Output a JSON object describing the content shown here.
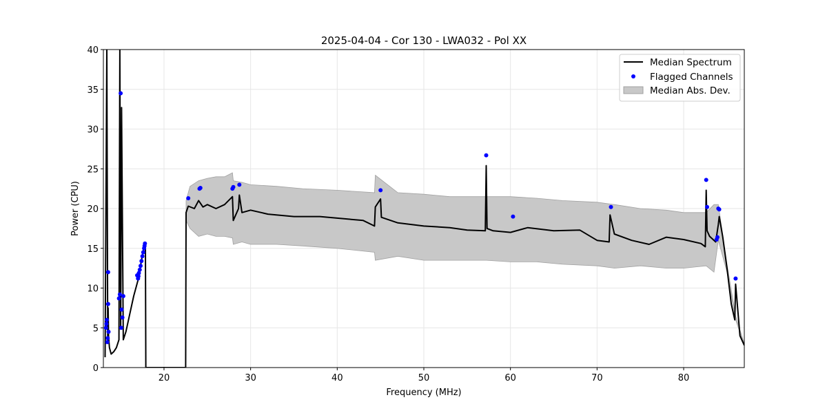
{
  "chart_data": {
    "type": "line",
    "title": "2025-04-04 - Cor 130 - LWA032 - Pol XX",
    "xlabel": "Frequency (MHz)",
    "ylabel": "Power (CPU)",
    "xlim": [
      13,
      87
    ],
    "ylim": [
      0,
      40
    ],
    "xticks": [
      20,
      30,
      40,
      50,
      60,
      70,
      80
    ],
    "yticks": [
      0,
      5,
      10,
      15,
      20,
      25,
      30,
      35,
      40
    ],
    "grid": true,
    "legend_position": "top-right",
    "colors": {
      "median": "#000000",
      "flagged": "#0000ff",
      "mad_fill": "#c8c8c8",
      "mad_edge": "#a0a0a0"
    },
    "legend": [
      "Median Spectrum",
      "Flagged Channels",
      "Median Abs. Dev."
    ],
    "median_spectrum": {
      "name": "Median Spectrum",
      "x": [
        13.2,
        13.4,
        13.5,
        13.55,
        13.6,
        13.7,
        13.9,
        14.2,
        14.5,
        14.8,
        14.9,
        15.0,
        15.1,
        15.3,
        15.6,
        16.0,
        16.5,
        17.0,
        17.4,
        17.7,
        17.85,
        17.9,
        22.5,
        22.55,
        22.8,
        23.5,
        24.0,
        24.5,
        25.0,
        26.0,
        27.0,
        27.9,
        28.0,
        28.6,
        28.7,
        29.0,
        30.0,
        32.0,
        35.0,
        38.0,
        40.0,
        43.0,
        44.3,
        44.4,
        45.0,
        45.1,
        47.0,
        50.0,
        53.0,
        55.0,
        57.1,
        57.2,
        57.3,
        58.0,
        60.0,
        62.0,
        65.0,
        68.0,
        70.0,
        71.4,
        71.5,
        72.0,
        74.0,
        76.0,
        78.0,
        80.0,
        82.0,
        82.5,
        82.6,
        82.7,
        83.0,
        83.7,
        84.0,
        84.1,
        84.5,
        85.0,
        85.5,
        85.9,
        86.0,
        86.5,
        87.0
      ],
      "y": [
        1.3,
        40,
        3.5,
        7.5,
        4.0,
        2.5,
        1.7,
        2.0,
        2.5,
        3.5,
        40,
        5.0,
        32.7,
        3.5,
        4.5,
        6.5,
        9.0,
        11.0,
        13.5,
        15.3,
        15.5,
        0.0,
        0.0,
        19.5,
        20.3,
        20.0,
        21.0,
        20.2,
        20.5,
        20.0,
        20.5,
        21.5,
        18.5,
        20.0,
        21.7,
        19.5,
        19.8,
        19.3,
        19.0,
        19.0,
        18.8,
        18.5,
        17.8,
        20.2,
        21.2,
        18.9,
        18.2,
        17.8,
        17.6,
        17.3,
        17.2,
        25.4,
        17.5,
        17.2,
        17.0,
        17.6,
        17.2,
        17.3,
        16.0,
        15.8,
        19.2,
        16.8,
        16.0,
        15.5,
        16.4,
        16.1,
        15.6,
        15.2,
        22.3,
        17.2,
        16.5,
        15.8,
        18.0,
        19.0,
        16.5,
        12.5,
        8.0,
        6.0,
        10.5,
        4.0,
        2.8
      ]
    },
    "mad_band": {
      "name": "Median Abs. Dev.",
      "x": [
        22.55,
        23.0,
        24.0,
        25.0,
        26.0,
        27.0,
        27.9,
        28.0,
        29.0,
        30.0,
        33.0,
        36.0,
        40.0,
        44.3,
        44.4,
        47.0,
        50.0,
        53.0,
        57.2,
        60.0,
        63.0,
        66.0,
        70.0,
        72.0,
        75.0,
        78.0,
        80.0,
        82.6,
        83.5,
        84.0,
        85.0,
        86.0,
        87.0
      ],
      "upper": [
        21.0,
        22.8,
        23.5,
        23.8,
        24.0,
        24.0,
        24.5,
        23.5,
        23.3,
        23.0,
        22.8,
        22.5,
        22.3,
        22.0,
        24.2,
        22.0,
        21.8,
        21.5,
        21.5,
        21.5,
        21.3,
        21.0,
        20.8,
        20.5,
        20.0,
        19.8,
        19.5,
        19.5,
        20.5,
        20.5,
        13.0,
        6.5,
        3.0
      ],
      "lower": [
        18.5,
        17.5,
        16.5,
        16.8,
        16.5,
        16.5,
        16.3,
        15.5,
        15.8,
        15.5,
        15.5,
        15.3,
        15.0,
        14.5,
        13.5,
        14.0,
        13.5,
        13.5,
        13.5,
        13.3,
        13.3,
        13.0,
        12.8,
        12.5,
        12.8,
        12.5,
        12.5,
        12.8,
        12.0,
        16.0,
        12.0,
        6.0,
        2.8
      ]
    },
    "flagged_channels": {
      "name": "Flagged Channels",
      "x": [
        13.3,
        13.35,
        13.4,
        13.45,
        13.5,
        13.55,
        13.55,
        13.6,
        15.0,
        15.05,
        14.8,
        14.9,
        15.1,
        15.2,
        15.3,
        16.9,
        17.0,
        17.05,
        17.1,
        17.2,
        17.3,
        17.4,
        17.5,
        17.6,
        17.7,
        17.75,
        17.8,
        22.8,
        24.1,
        24.2,
        27.9,
        28.0,
        28.7,
        45.0,
        57.2,
        60.3,
        71.6,
        82.6,
        82.7,
        83.8,
        83.9,
        84.0,
        84.1,
        86.0
      ],
      "y": [
        5.0,
        5.5,
        6.0,
        3.2,
        3.7,
        12.0,
        8.0,
        4.5,
        34.5,
        5.0,
        8.7,
        9.2,
        7.3,
        6.3,
        9.0,
        11.6,
        11.2,
        11.5,
        11.9,
        12.3,
        12.8,
        13.4,
        14.0,
        14.5,
        15.0,
        15.3,
        15.6,
        21.3,
        22.5,
        22.6,
        22.5,
        22.7,
        23.0,
        22.3,
        26.7,
        19.0,
        20.2,
        23.6,
        20.2,
        16.1,
        16.4,
        20.0,
        19.9,
        11.2
      ]
    }
  }
}
